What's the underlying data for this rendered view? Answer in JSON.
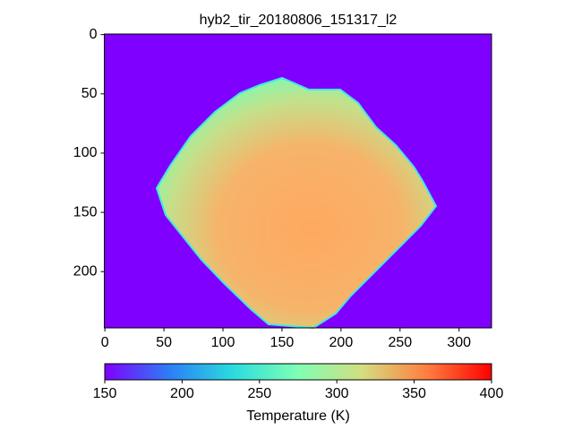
{
  "chart_data": {
    "type": "image",
    "title": "hyb2_tir_20180806_151317_l2",
    "xlim": [
      -0.5,
      327.5
    ],
    "ylim": [
      247.5,
      -0.5
    ],
    "xticks": [
      0,
      50,
      100,
      150,
      200,
      250,
      300
    ],
    "yticks": [
      0,
      50,
      100,
      150,
      200
    ],
    "background_color": "#8000ff",
    "colorbar": {
      "label": "Temperature (K)",
      "clim": [
        150,
        400
      ],
      "ticks": [
        150,
        200,
        250,
        300,
        350,
        400
      ],
      "colors": [
        "#8000ff",
        "#2c7ef7",
        "#2adddd",
        "#80ffb4",
        "#d4dd80",
        "#ff7e41",
        "#ff0000"
      ]
    }
  }
}
